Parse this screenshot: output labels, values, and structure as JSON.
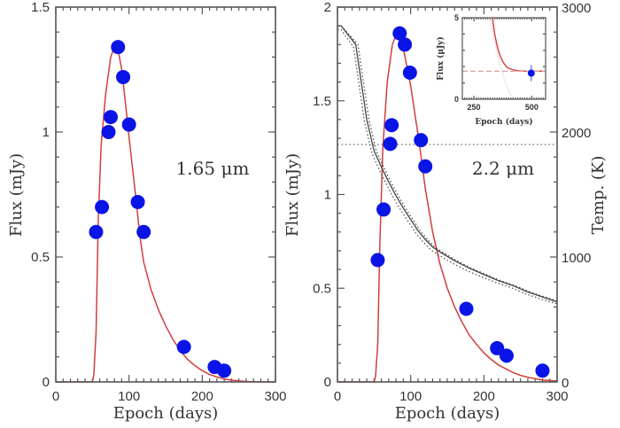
{
  "chart_data": [
    {
      "type": "scatter",
      "panel": "left",
      "title": "",
      "annotation": "1.65 μm",
      "xlabel": "Epoch (days)",
      "ylabel": "Flux (mJy)",
      "xlim": [
        0,
        300
      ],
      "ylim": [
        0,
        1.5
      ],
      "xticks": [
        0,
        100,
        200,
        300
      ],
      "xtick_labels": [
        "0",
        "100",
        "200",
        "300"
      ],
      "yticks": [
        0,
        0.5,
        1,
        1.5
      ],
      "ytick_labels": [
        "0",
        "0.5",
        "1",
        "1.5"
      ],
      "colors": {
        "points": "#0a14e6",
        "model": "#d43c3c"
      },
      "series": [
        {
          "name": "observed flux",
          "kind": "points",
          "x": [
            55,
            63,
            72,
            75,
            85,
            92,
            100,
            112,
            120,
            175,
            217,
            230
          ],
          "y": [
            0.6,
            0.7,
            1.0,
            1.06,
            1.34,
            1.22,
            1.03,
            0.72,
            0.6,
            0.14,
            0.06,
            0.045
          ]
        },
        {
          "name": "dust model",
          "kind": "line",
          "x": [
            0,
            50,
            52,
            55,
            58,
            62,
            68,
            75,
            80,
            85,
            90,
            95,
            100,
            105,
            110,
            115,
            120,
            130,
            140,
            150,
            160,
            170,
            180,
            190,
            200,
            210,
            220,
            230,
            240,
            250,
            260,
            280,
            300
          ],
          "y": [
            0,
            0,
            0.03,
            0.2,
            0.65,
            0.95,
            1.15,
            1.3,
            1.34,
            1.33,
            1.25,
            1.12,
            0.98,
            0.85,
            0.72,
            0.58,
            0.48,
            0.37,
            0.29,
            0.225,
            0.17,
            0.125,
            0.09,
            0.065,
            0.045,
            0.03,
            0.02,
            0.012,
            0.007,
            0.004,
            0.002,
            0.0,
            0.0
          ]
        }
      ]
    },
    {
      "type": "scatter",
      "panel": "right",
      "title": "",
      "annotation": "2.2 μm",
      "xlabel": "Epoch (days)",
      "ylabel": "Flux (mJy)",
      "y2label": "Temp. (K)",
      "xlim": [
        0,
        300
      ],
      "ylim": [
        0,
        2
      ],
      "y2lim": [
        0,
        3000
      ],
      "xticks": [
        0,
        100,
        200,
        300
      ],
      "xtick_labels": [
        "0",
        "100",
        "200",
        "300"
      ],
      "yticks": [
        0,
        0.5,
        1,
        1.5,
        2
      ],
      "ytick_labels": [
        "0",
        "0.5",
        "1",
        "1.5",
        "2"
      ],
      "y2ticks": [
        0,
        1000,
        2000,
        3000
      ],
      "y2tick_labels": [
        "0",
        "1000",
        "2000",
        "3000"
      ],
      "colors": {
        "points": "#0a14e6",
        "model": "#d43c3c",
        "temperature": "#444444",
        "threshold": "#777777"
      },
      "series": [
        {
          "name": "observed flux",
          "kind": "points",
          "x": [
            55,
            63,
            72,
            74,
            85,
            92,
            99,
            114,
            120,
            176,
            218,
            231,
            280
          ],
          "y": [
            0.65,
            0.92,
            1.27,
            1.37,
            1.86,
            1.8,
            1.65,
            1.29,
            1.15,
            0.39,
            0.18,
            0.14,
            0.06
          ]
        },
        {
          "name": "dust model",
          "kind": "line",
          "x": [
            0,
            50,
            52,
            55,
            58,
            62,
            68,
            75,
            80,
            85,
            90,
            95,
            100,
            105,
            110,
            115,
            120,
            130,
            140,
            150,
            160,
            170,
            180,
            190,
            200,
            210,
            220,
            230,
            240,
            250,
            260,
            280,
            300
          ],
          "y": [
            0,
            0,
            0.03,
            0.2,
            0.75,
            1.25,
            1.6,
            1.8,
            1.85,
            1.85,
            1.78,
            1.68,
            1.58,
            1.45,
            1.32,
            1.18,
            1.03,
            0.8,
            0.63,
            0.5,
            0.4,
            0.32,
            0.25,
            0.2,
            0.155,
            0.12,
            0.09,
            0.07,
            0.05,
            0.035,
            0.025,
            0.01,
            0.005
          ]
        },
        {
          "name": "dust temperature",
          "kind": "line",
          "axis": "y2",
          "x": [
            0,
            5,
            25,
            40,
            50,
            60,
            70,
            80,
            90,
            100,
            110,
            120,
            130,
            140,
            160,
            180,
            200,
            220,
            240,
            260,
            280,
            300
          ],
          "y": [
            2850,
            2850,
            2700,
            2100,
            1850,
            1720,
            1600,
            1490,
            1390,
            1300,
            1210,
            1140,
            1080,
            1040,
            970,
            910,
            860,
            810,
            770,
            720,
            680,
            640
          ]
        },
        {
          "name": "temperature upper bound",
          "kind": "dotted-line",
          "axis": "y2",
          "x": [
            0,
            5,
            28,
            43,
            53,
            63,
            73,
            83,
            93,
            103,
            113,
            123,
            133,
            143,
            163,
            183,
            203,
            223,
            243,
            263,
            283,
            300
          ],
          "y": [
            2850,
            2850,
            2700,
            2100,
            1850,
            1720,
            1600,
            1490,
            1390,
            1300,
            1210,
            1140,
            1080,
            1040,
            970,
            910,
            860,
            810,
            770,
            720,
            680,
            650
          ]
        },
        {
          "name": "temperature lower bound",
          "kind": "dotted-line",
          "axis": "y2",
          "x": [
            0,
            5,
            22,
            37,
            47,
            57,
            67,
            77,
            87,
            97,
            107,
            117,
            127,
            137,
            157,
            177,
            197,
            217,
            237,
            257,
            277,
            300
          ],
          "y": [
            2820,
            2820,
            2680,
            2080,
            1830,
            1700,
            1580,
            1470,
            1370,
            1280,
            1190,
            1120,
            1060,
            1020,
            950,
            890,
            840,
            795,
            755,
            705,
            665,
            625
          ]
        },
        {
          "name": "condensation temperature",
          "kind": "dotted-hline",
          "axis": "y2",
          "y": 1900
        }
      ]
    },
    {
      "type": "scatter",
      "panel": "inset",
      "title": "",
      "xlabel": "Epoch (days)",
      "ylabel": "Flux (μJy)",
      "xlim": [
        200,
        560
      ],
      "ylim": [
        0,
        5
      ],
      "xticks": [
        250,
        500
      ],
      "xtick_labels": [
        "250",
        "500"
      ],
      "yticks": [
        0,
        5
      ],
      "ytick_labels": [
        "0",
        "5"
      ],
      "colors": {
        "points": "#0a14e6",
        "model": "#d43c3c",
        "dashed": "#e0a0a0",
        "dotted": "#e0a0a0"
      },
      "series": [
        {
          "name": "late observation",
          "kind": "points",
          "x": [
            498
          ],
          "y": [
            1.6
          ],
          "yerr": [
            0.5
          ]
        },
        {
          "name": "dust model + floor",
          "kind": "line",
          "x": [
            330,
            340,
            350,
            360,
            370,
            380,
            390,
            400,
            420,
            440,
            470,
            500,
            560
          ],
          "y": [
            5.0,
            4.0,
            3.3,
            2.8,
            2.45,
            2.2,
            2.0,
            1.9,
            1.8,
            1.75,
            1.72,
            1.72,
            1.72
          ]
        },
        {
          "name": "constant floor",
          "kind": "dashed-line",
          "x": [
            200,
            560
          ],
          "y": [
            1.72,
            1.72
          ]
        },
        {
          "name": "dust model only",
          "kind": "dotted-line",
          "x": [
            320,
            340,
            360,
            380,
            400,
            420
          ],
          "y": [
            5.0,
            3.6,
            2.3,
            1.3,
            0.5,
            0.0
          ]
        }
      ]
    }
  ]
}
